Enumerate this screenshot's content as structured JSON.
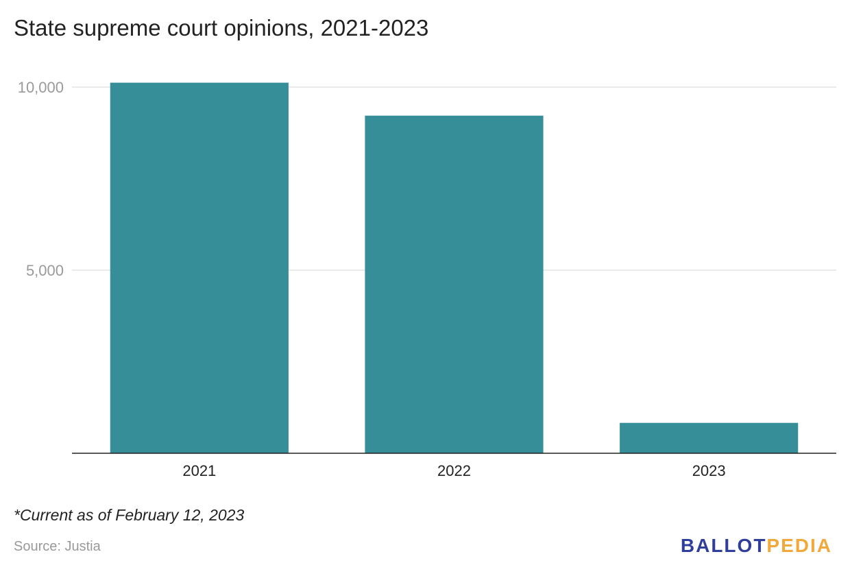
{
  "chart_data": {
    "type": "bar",
    "title": "State supreme court opinions, 2021-2023",
    "categories": [
      "2021",
      "2022",
      "2023"
    ],
    "values": [
      10120,
      9220,
      830
    ],
    "ylim": [
      0,
      10000
    ],
    "yticks": [
      5000,
      10000
    ],
    "ytick_labels": [
      "5,000",
      "10,000"
    ],
    "grid": true,
    "bar_color": "#368e99",
    "footnote": "*Current as of February 12, 2023",
    "source": "Source: Justia"
  },
  "logo": {
    "part1": "BALLOT",
    "part2": "PEDIA",
    "color1": "#2e3e9a",
    "color2": "#f2a93b"
  }
}
